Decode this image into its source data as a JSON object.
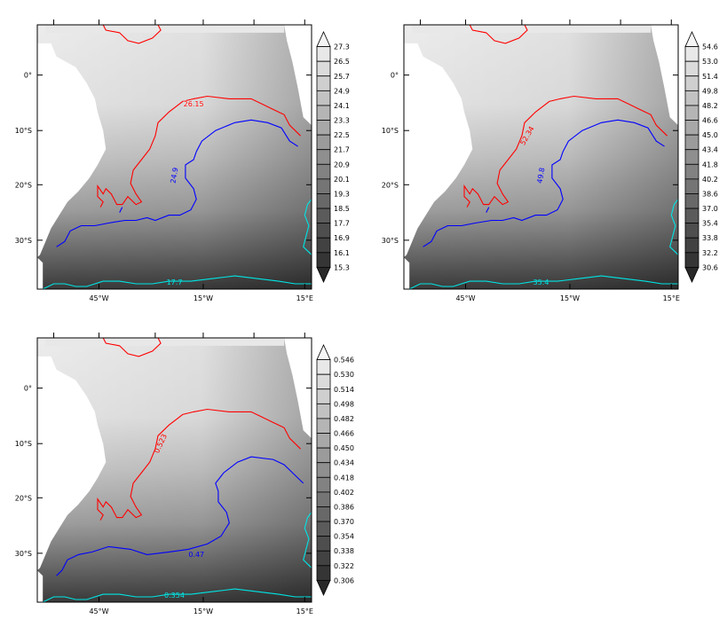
{
  "panels": [
    {
      "id": "p1",
      "lat_labels": [
        "0°",
        "10°S",
        "20°S",
        "30°S"
      ],
      "lon_labels": [
        "45°W",
        "15°W",
        "15°E"
      ],
      "colorbar": [
        "27.3",
        "26.5",
        "25.7",
        "24.9",
        "24.1",
        "23.3",
        "22.5",
        "21.7",
        "20.9",
        "20.1",
        "19.3",
        "18.5",
        "17.7",
        "16.9",
        "16.1",
        "15.3"
      ],
      "contour_labels": {
        "red": "26.15",
        "blue": "24.9",
        "cyan": "17.7"
      }
    },
    {
      "id": "p2",
      "lat_labels": [
        "0°",
        "10°S",
        "20°S",
        "30°S"
      ],
      "lon_labels": [
        "45°W",
        "15°W",
        "15°E"
      ],
      "colorbar": [
        "54.6",
        "53.0",
        "51.4",
        "49.8",
        "48.2",
        "46.6",
        "45.0",
        "43.4",
        "41.8",
        "40.2",
        "38.6",
        "37.0",
        "35.4",
        "33.8",
        "32.2",
        "30.6"
      ],
      "contour_labels": {
        "red": "52.34",
        "blue": "49.8",
        "cyan": "35.4"
      }
    },
    {
      "id": "p3",
      "lat_labels": [
        "0°",
        "10°S",
        "20°S",
        "30°S"
      ],
      "lon_labels": [
        "45°W",
        "15°W",
        "15°E"
      ],
      "colorbar": [
        "0.546",
        "0.530",
        "0.514",
        "0.498",
        "0.482",
        "0.466",
        "0.450",
        "0.434",
        "0.418",
        "0.402",
        "0.386",
        "0.370",
        "0.354",
        "0.338",
        "0.322",
        "0.306"
      ],
      "contour_labels": {
        "red": "0.523",
        "blue": "0.47",
        "cyan": "0.354"
      }
    }
  ],
  "colors": {
    "red_contour": "#ff0000",
    "blue_contour": "#0000ff",
    "cyan_contour": "#00e5e5",
    "field_light": "#ececec",
    "field_dark": "#3a3a3a"
  }
}
